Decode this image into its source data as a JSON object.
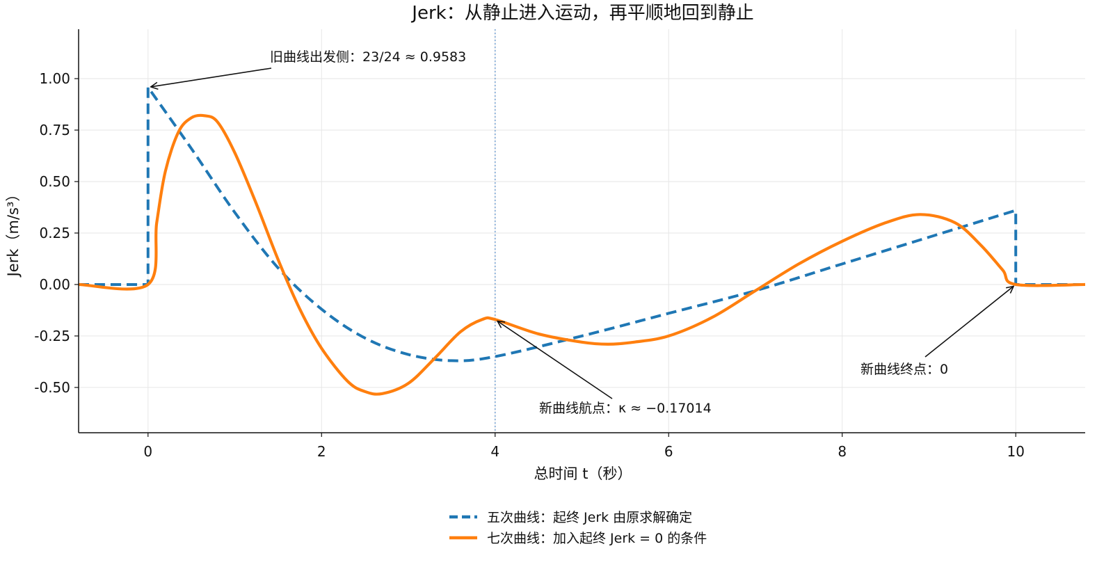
{
  "chart_data": {
    "type": "line",
    "title": "Jerk：从静止进入运动，再平顺地回到静止",
    "xlabel": "总时间 t（秒）",
    "ylabel": "Jerk（m/s³）",
    "xlim": [
      -0.8,
      10.8
    ],
    "ylim": [
      -0.72,
      1.24
    ],
    "xticks": [
      0,
      2,
      4,
      6,
      8,
      10
    ],
    "xtick_labels": [
      "0",
      "2",
      "4",
      "6",
      "8",
      "10"
    ],
    "yticks": [
      -0.5,
      -0.25,
      0,
      0.25,
      0.5,
      0.75,
      1.0
    ],
    "ytick_labels": [
      "-0.50",
      "-0.25",
      "0.00",
      "0.25",
      "0.50",
      "0.75",
      "1.00"
    ],
    "grid": true,
    "legend_position": "bottom-center",
    "vline_x": 4,
    "series": [
      {
        "name": "五次曲线：起终 Jerk 由原求解确定",
        "color": "#1f77b4",
        "dash": "dashed",
        "x": [
          -0.8,
          0,
          0,
          0.5,
          1.0,
          1.5,
          2.0,
          2.5,
          3.0,
          3.5,
          4.0,
          5.0,
          6.0,
          7.0,
          8.0,
          9.0,
          10.0,
          10.0,
          10.8
        ],
        "y": [
          0,
          0,
          0.958,
          0.66,
          0.35,
          0.08,
          -0.12,
          -0.26,
          -0.34,
          -0.37,
          -0.35,
          -0.25,
          -0.14,
          -0.03,
          0.1,
          0.23,
          0.36,
          0,
          0
        ]
      },
      {
        "name": "七次曲线：加入起终 Jerk = 0 的条件",
        "color": "#ff7f0e",
        "dash": "solid",
        "x": [
          -0.8,
          0,
          0.1,
          0.2,
          0.35,
          0.5,
          0.65,
          0.8,
          1.0,
          1.25,
          1.5,
          1.75,
          2.0,
          2.3,
          2.5,
          2.7,
          3.0,
          3.3,
          3.6,
          3.85,
          4.0,
          4.5,
          5.0,
          5.3,
          5.6,
          6.0,
          6.5,
          7.0,
          7.5,
          8.0,
          8.5,
          8.9,
          9.3,
          9.6,
          9.85,
          10.0,
          10.8
        ],
        "y": [
          0,
          0,
          0.3,
          0.55,
          0.74,
          0.81,
          0.82,
          0.79,
          0.64,
          0.39,
          0.12,
          -0.12,
          -0.31,
          -0.47,
          -0.52,
          -0.53,
          -0.48,
          -0.36,
          -0.23,
          -0.17,
          -0.17,
          -0.24,
          -0.28,
          -0.29,
          -0.28,
          -0.25,
          -0.16,
          -0.03,
          0.1,
          0.21,
          0.3,
          0.34,
          0.3,
          0.19,
          0.07,
          0,
          0
        ]
      }
    ],
    "annotations": [
      {
        "text": "旧曲线出发侧：23/24 ≈ 0.9583",
        "target_x": 0,
        "target_y": 0.958
      },
      {
        "text": "新曲线航点：κ ≈ −0.17014",
        "target_x": 4,
        "target_y": -0.17
      },
      {
        "text": "新曲线终点：0",
        "target_x": 10,
        "target_y": 0
      }
    ]
  }
}
